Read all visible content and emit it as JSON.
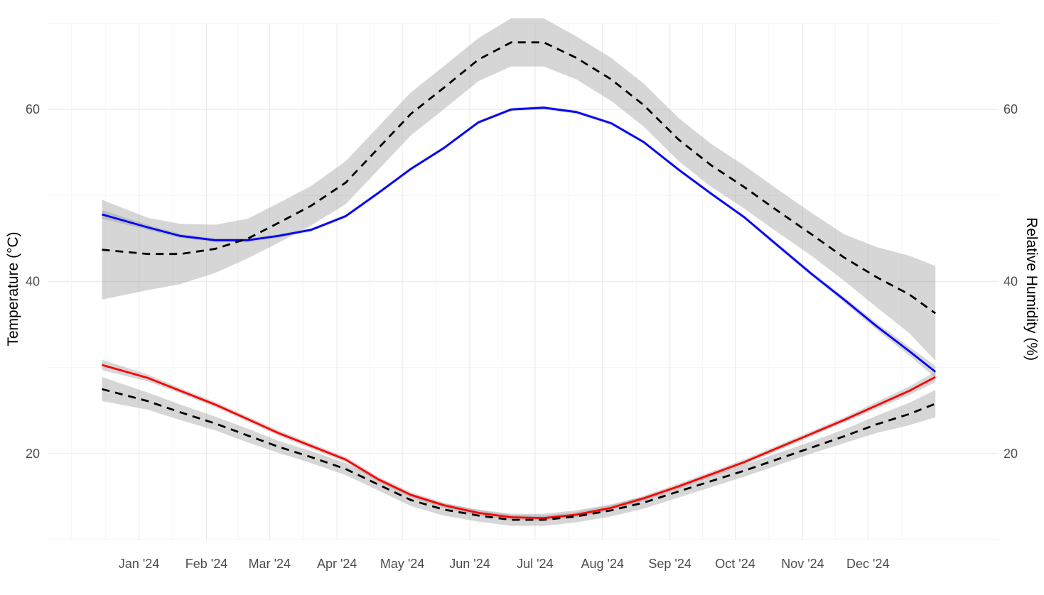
{
  "chart_data": {
    "type": "line",
    "title": "",
    "xlabel": "",
    "ylabel": "Temperature (°C)",
    "y2label": "Relative Humidity (%)",
    "x_tick_labels": [
      "Jan '24",
      "Feb '24",
      "Mar '24",
      "Apr '24",
      "May '24",
      "Jun '24",
      "Jul '24",
      "Aug '24",
      "Sep '24",
      "Oct '24",
      "Nov '24",
      "Dec '24"
    ],
    "x_tick_dates": [
      "2024-01-01",
      "2024-02-01",
      "2024-03-01",
      "2024-04-01",
      "2024-05-01",
      "2024-06-01",
      "2024-07-01",
      "2024-08-01",
      "2024-09-01",
      "2024-10-01",
      "2024-11-01",
      "2024-12-01"
    ],
    "xlim": [
      "2023-11-20",
      "2025-01-30"
    ],
    "ylim": [
      10,
      70
    ],
    "y_ticks": [
      20,
      40,
      60
    ],
    "y2_ticks": [
      20,
      40,
      60
    ],
    "grid": true,
    "legend": "none",
    "series": [
      {
        "color": "#0000ff",
        "line_style": "solid",
        "x": [
          "2023-12-15",
          "2024-01-05",
          "2024-01-20",
          "2024-02-05",
          "2024-02-20",
          "2024-03-05",
          "2024-03-20",
          "2024-04-05",
          "2024-04-20",
          "2024-05-05",
          "2024-05-20",
          "2024-06-05",
          "2024-06-20",
          "2024-07-05",
          "2024-07-20",
          "2024-08-05",
          "2024-08-20",
          "2024-09-05",
          "2024-09-20",
          "2024-10-05",
          "2024-10-20",
          "2024-11-05",
          "2024-11-20",
          "2024-12-05",
          "2024-12-20",
          "2025-01-01"
        ],
        "y": [
          47.8,
          46.3,
          45.3,
          44.8,
          44.8,
          45.3,
          46.0,
          47.6,
          50.3,
          53.1,
          55.5,
          58.5,
          60.0,
          60.2,
          59.7,
          58.4,
          56.2,
          53.0,
          50.2,
          47.5,
          44.3,
          40.9,
          37.9,
          34.8,
          31.9,
          29.5
        ],
        "band_half_width": [
          0.5,
          0.3,
          0.25,
          0.2,
          0.2,
          0.2,
          0.2,
          0.2,
          0.2,
          0.2,
          0.2,
          0.2,
          0.2,
          0.2,
          0.2,
          0.2,
          0.2,
          0.2,
          0.2,
          0.2,
          0.25,
          0.25,
          0.3,
          0.4,
          0.5,
          0.7
        ]
      },
      {
        "color": "#000000",
        "line_style": "dashed",
        "x": [
          "2023-12-15",
          "2024-01-05",
          "2024-01-20",
          "2024-02-05",
          "2024-02-20",
          "2024-03-05",
          "2024-03-20",
          "2024-04-05",
          "2024-04-20",
          "2024-05-05",
          "2024-05-20",
          "2024-06-05",
          "2024-06-20",
          "2024-07-05",
          "2024-07-20",
          "2024-08-05",
          "2024-08-20",
          "2024-09-05",
          "2024-09-20",
          "2024-10-05",
          "2024-10-20",
          "2024-11-05",
          "2024-11-20",
          "2024-12-05",
          "2024-12-20",
          "2025-01-01"
        ],
        "y": [
          43.7,
          43.2,
          43.2,
          43.8,
          45.0,
          46.8,
          48.8,
          51.5,
          55.5,
          59.5,
          62.5,
          65.8,
          67.8,
          67.8,
          66.0,
          63.5,
          60.5,
          56.5,
          53.5,
          51.0,
          48.3,
          45.5,
          42.8,
          40.5,
          38.5,
          36.3
        ],
        "band_half_width": [
          5.8,
          4.2,
          3.5,
          2.8,
          2.3,
          2.3,
          2.3,
          2.5,
          2.5,
          2.5,
          2.5,
          2.5,
          2.8,
          2.8,
          2.5,
          2.5,
          2.5,
          2.5,
          2.5,
          2.5,
          2.5,
          2.5,
          2.7,
          3.5,
          4.5,
          5.5
        ]
      },
      {
        "color": "#ff0000",
        "line_style": "solid",
        "x": [
          "2023-12-15",
          "2024-01-05",
          "2024-01-20",
          "2024-02-05",
          "2024-02-20",
          "2024-03-05",
          "2024-03-20",
          "2024-04-05",
          "2024-04-20",
          "2024-05-05",
          "2024-05-20",
          "2024-06-05",
          "2024-06-20",
          "2024-07-05",
          "2024-07-20",
          "2024-08-05",
          "2024-08-20",
          "2024-09-05",
          "2024-09-20",
          "2024-10-05",
          "2024-10-20",
          "2024-11-05",
          "2024-11-20",
          "2024-12-05",
          "2024-12-20",
          "2025-01-01"
        ],
        "y": [
          30.3,
          28.8,
          27.3,
          25.7,
          24.0,
          22.4,
          20.9,
          19.3,
          17.0,
          15.2,
          14.0,
          13.1,
          12.6,
          12.5,
          12.9,
          13.7,
          14.8,
          16.2,
          17.6,
          19.0,
          20.6,
          22.3,
          23.9,
          25.6,
          27.3,
          28.9
        ],
        "band_half_width": [
          0.6,
          0.4,
          0.3,
          0.3,
          0.3,
          0.3,
          0.3,
          0.3,
          0.3,
          0.3,
          0.3,
          0.3,
          0.3,
          0.3,
          0.3,
          0.3,
          0.3,
          0.3,
          0.3,
          0.3,
          0.3,
          0.3,
          0.3,
          0.4,
          0.5,
          0.6
        ]
      },
      {
        "color": "#000000",
        "line_style": "dashed",
        "x": [
          "2023-12-15",
          "2024-01-05",
          "2024-01-20",
          "2024-02-05",
          "2024-02-20",
          "2024-03-05",
          "2024-03-20",
          "2024-04-05",
          "2024-04-20",
          "2024-05-05",
          "2024-05-20",
          "2024-06-05",
          "2024-06-20",
          "2024-07-05",
          "2024-07-20",
          "2024-08-05",
          "2024-08-20",
          "2024-09-05",
          "2024-09-20",
          "2024-10-05",
          "2024-10-20",
          "2024-11-05",
          "2024-11-20",
          "2024-12-05",
          "2024-12-20",
          "2025-01-01"
        ],
        "y": [
          27.5,
          26.1,
          24.8,
          23.5,
          22.1,
          20.8,
          19.6,
          18.2,
          16.4,
          14.6,
          13.5,
          12.8,
          12.3,
          12.3,
          12.7,
          13.4,
          14.3,
          15.6,
          16.8,
          18.0,
          19.3,
          20.7,
          22.0,
          23.4,
          24.6,
          25.8
        ],
        "band_half_width": [
          1.4,
          1.0,
          0.9,
          0.8,
          0.8,
          0.7,
          0.7,
          0.7,
          0.7,
          0.7,
          0.7,
          0.7,
          0.7,
          0.7,
          0.7,
          0.7,
          0.7,
          0.7,
          0.7,
          0.7,
          0.7,
          0.7,
          0.8,
          1.0,
          1.3,
          1.6
        ]
      }
    ]
  }
}
